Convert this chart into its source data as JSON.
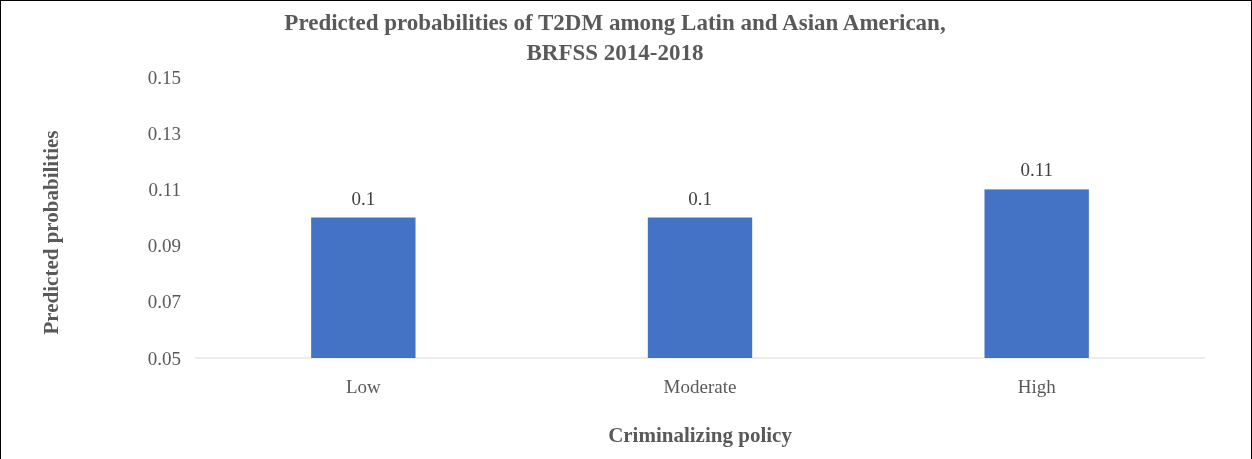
{
  "chart_data": {
    "type": "bar",
    "title": "Predicted probabilities of T2DM among Latin and Asian American, BRFSS 2014-2018",
    "xlabel": "Criminalizing policy",
    "ylabel": "Predicted probabilities",
    "categories": [
      "Low",
      "Moderate",
      "High"
    ],
    "values": [
      0.1,
      0.1,
      0.11
    ],
    "color": "#4472c4",
    "ylim": [
      0.05,
      0.15
    ],
    "yticks": [
      0.05,
      0.07,
      0.09,
      0.11,
      0.13,
      0.15
    ],
    "grid": false,
    "data_labels": true
  }
}
